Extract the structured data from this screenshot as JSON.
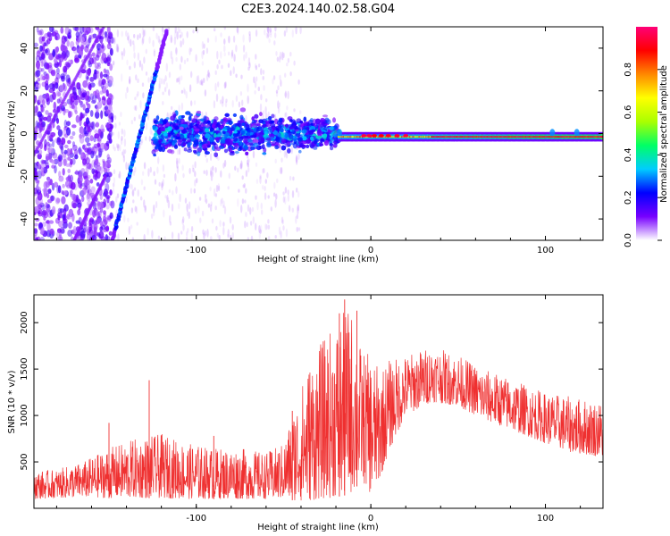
{
  "title": "C2E3.2024.140.02.58.G04",
  "chart_data": [
    {
      "type": "heatmap",
      "name": "spectrogram",
      "xlabel": "Height of straight line (km)",
      "ylabel": "Frequency (Hz)",
      "xlim": [
        -193,
        133
      ],
      "ylim": [
        -50,
        50
      ],
      "xticks": [
        -100,
        0,
        100
      ],
      "xtick_labels": [
        "-100",
        "0",
        "100"
      ],
      "yticks": [
        -40,
        -20,
        0,
        20,
        40
      ],
      "ytick_labels": [
        "-40",
        "-20",
        "0",
        "20",
        "40"
      ],
      "description_features": {
        "diagonal_track": {
          "from": [
            -148,
            -50
          ],
          "to": [
            -117,
            48
          ]
        },
        "tone_band_center_hz": -1.5,
        "noise_region_x": [
          -193,
          -148
        ],
        "broadband_region_x": [
          -125,
          -18
        ],
        "strong_tone_region_x": [
          -18,
          133
        ]
      }
    },
    {
      "type": "colorbar",
      "label": "Normalized spectral amplitude",
      "range": [
        0.0,
        1.0
      ],
      "ticks": [
        0.0,
        0.2,
        0.4,
        0.6,
        0.8
      ],
      "tick_labels": [
        "0.0",
        "0.2",
        "0.4",
        "0.6",
        "0.8"
      ],
      "colormap": [
        "#ffffff",
        "#7700ff",
        "#0000ff",
        "#00ccff",
        "#00ff66",
        "#aaff00",
        "#ffff00",
        "#ff8800",
        "#ff0000",
        "#ff0077"
      ]
    },
    {
      "type": "line",
      "name": "snr",
      "xlabel": "Height of straight line (km)",
      "ylabel": "SNR (10 * v/v)",
      "xlim": [
        -193,
        133
      ],
      "ylim": [
        0,
        2300
      ],
      "xticks": [
        -100,
        0,
        100
      ],
      "xtick_labels": [
        "-100",
        "0",
        "100"
      ],
      "yticks": [
        500,
        1000,
        1500,
        2000
      ],
      "ytick_labels": [
        "500",
        "1000",
        "1500",
        "2000"
      ],
      "color": "#ef3030",
      "envelope": {
        "x": [
          -193,
          -180,
          -165,
          -150,
          -135,
          -120,
          -105,
          -90,
          -75,
          -60,
          -50,
          -42,
          -35,
          -28,
          -20,
          -12,
          -5,
          0,
          5,
          10,
          20,
          35,
          50,
          65,
          80,
          100,
          115,
          133
        ],
        "low": [
          100,
          110,
          120,
          110,
          110,
          110,
          100,
          100,
          100,
          100,
          100,
          80,
          80,
          100,
          120,
          150,
          300,
          150,
          300,
          600,
          1000,
          1150,
          1100,
          950,
          850,
          700,
          600,
          550
        ],
        "high": [
          400,
          420,
          500,
          650,
          750,
          800,
          700,
          650,
          650,
          600,
          700,
          1200,
          1600,
          1800,
          2000,
          2200,
          1700,
          1650,
          1500,
          1600,
          1650,
          1750,
          1650,
          1500,
          1400,
          1250,
          1200,
          1150
        ]
      },
      "spikes": [
        [
          -127,
          1380
        ],
        [
          -150,
          920
        ],
        [
          -90,
          780
        ],
        [
          -45,
          1050
        ],
        [
          -18,
          2100
        ],
        [
          -15,
          2250
        ],
        [
          -8,
          2130
        ]
      ]
    }
  ]
}
